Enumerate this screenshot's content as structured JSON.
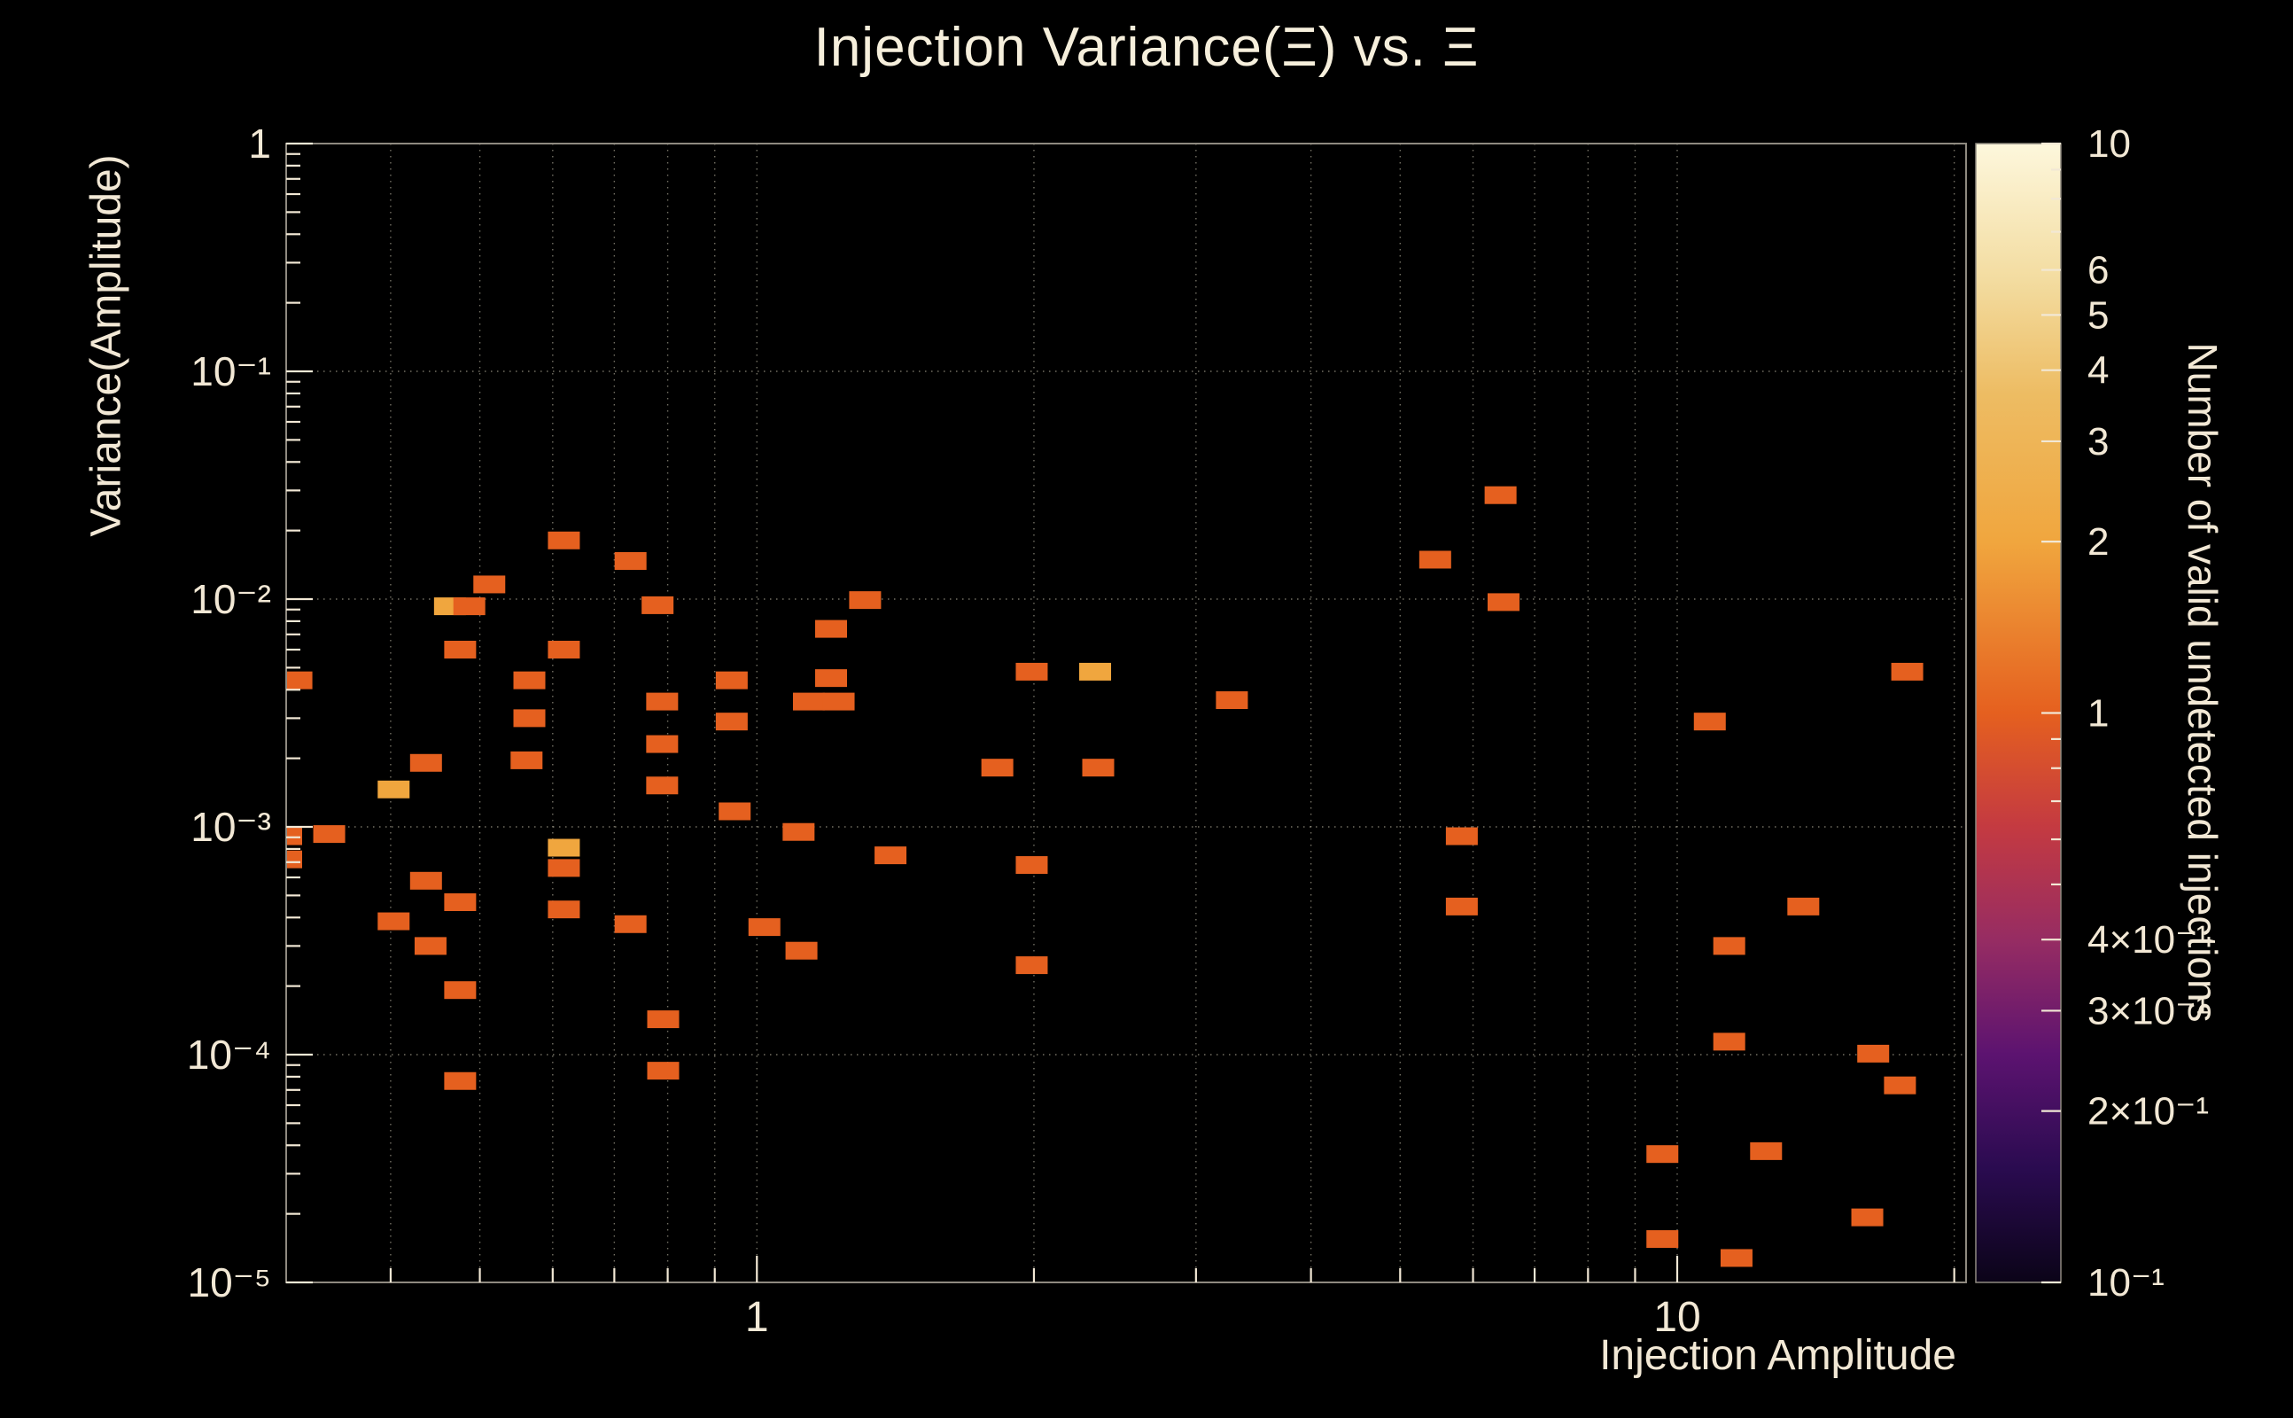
{
  "chart_data": {
    "type": "heatmap",
    "title": "Injection Variance(Ξ) vs. Ξ",
    "xlabel": "Injection Amplitude",
    "ylabel": "Variance(Amplitude)",
    "zlabel": "Number of valid undetected injections",
    "x_scale": "log",
    "y_scale": "log",
    "z_scale": "log",
    "x_range": [
      0.308,
      20.6
    ],
    "y_range": [
      1e-05,
      1
    ],
    "z_range": [
      0.1,
      10
    ],
    "grid": true,
    "background": "#000000",
    "frame_color": "#8f8a80",
    "grid_color": "rgba(253,247,220,0.45)",
    "tick_color": "#f2e8d5",
    "x_ticks": [
      {
        "v": 1,
        "label": "1"
      },
      {
        "v": 10,
        "label": "10"
      }
    ],
    "y_ticks": [
      {
        "v": 1,
        "label": "1"
      },
      {
        "v": 0.1,
        "label": "10⁻¹"
      },
      {
        "v": 0.01,
        "label": "10⁻²"
      },
      {
        "v": 0.001,
        "label": "10⁻³"
      },
      {
        "v": 0.0001,
        "label": "10⁻⁴"
      },
      {
        "v": 1e-05,
        "label": "10⁻⁵"
      }
    ],
    "z_ticks": [
      {
        "v": 10,
        "label": "10"
      },
      {
        "v": 6,
        "label": "6"
      },
      {
        "v": 5,
        "label": "5"
      },
      {
        "v": 4,
        "label": "4"
      },
      {
        "v": 3,
        "label": "3"
      },
      {
        "v": 2,
        "label": "2"
      },
      {
        "v": 1,
        "label": "1"
      },
      {
        "v": 0.4,
        "label": "4×10⁻¹"
      },
      {
        "v": 0.3,
        "label": "3×10⁻¹"
      },
      {
        "v": 0.2,
        "label": "2×10⁻¹"
      },
      {
        "v": 0.1,
        "label": "10⁻¹"
      }
    ],
    "z_minor_ticks": [
      0.5,
      0.6,
      0.7,
      0.8,
      0.9,
      7,
      8,
      9
    ],
    "palette": [
      {
        "pos": 0.0,
        "color": "#0b0418"
      },
      {
        "pos": 0.1,
        "color": "#2a0b50"
      },
      {
        "pos": 0.2,
        "color": "#5c1370"
      },
      {
        "pos": 0.3,
        "color": "#962c63"
      },
      {
        "pos": 0.4,
        "color": "#c43a41"
      },
      {
        "pos": 0.5,
        "color": "#e5601f"
      },
      {
        "pos": 0.65,
        "color": "#f0a63e"
      },
      {
        "pos": 0.78,
        "color": "#edbc63"
      },
      {
        "pos": 0.88,
        "color": "#f3dca0"
      },
      {
        "pos": 1.0,
        "color": "#fdf7dc"
      }
    ],
    "value_colors": {
      "1": "#e5601f",
      "2": "#f0a63e"
    },
    "points": [
      {
        "x": 0.316,
        "y": 0.0044,
        "n": 1
      },
      {
        "x": 0.308,
        "y": 0.00091,
        "n": 1
      },
      {
        "x": 0.308,
        "y": 0.00072,
        "n": 1
      },
      {
        "x": 0.343,
        "y": 0.00093,
        "n": 1
      },
      {
        "x": 0.403,
        "y": 0.00146,
        "n": 2
      },
      {
        "x": 0.437,
        "y": 0.00191,
        "n": 1
      },
      {
        "x": 0.437,
        "y": 0.00058,
        "n": 1
      },
      {
        "x": 0.403,
        "y": 0.000385,
        "n": 1
      },
      {
        "x": 0.442,
        "y": 0.0003,
        "n": 1
      },
      {
        "x": 0.476,
        "y": 0.000467,
        "n": 1
      },
      {
        "x": 0.476,
        "y": 0.000192,
        "n": 1
      },
      {
        "x": 0.476,
        "y": 7.66e-05,
        "n": 1
      },
      {
        "x": 0.464,
        "y": 0.0093,
        "n": 2
      },
      {
        "x": 0.487,
        "y": 0.0093,
        "n": 1
      },
      {
        "x": 0.512,
        "y": 0.0116,
        "n": 1
      },
      {
        "x": 0.476,
        "y": 0.006,
        "n": 1
      },
      {
        "x": 0.566,
        "y": 0.0044,
        "n": 1
      },
      {
        "x": 0.566,
        "y": 0.003,
        "n": 1
      },
      {
        "x": 0.562,
        "y": 0.00196,
        "n": 1
      },
      {
        "x": 0.617,
        "y": 0.0181,
        "n": 1
      },
      {
        "x": 0.617,
        "y": 0.006,
        "n": 1
      },
      {
        "x": 0.617,
        "y": 0.00081,
        "n": 2
      },
      {
        "x": 0.617,
        "y": 0.00066,
        "n": 1
      },
      {
        "x": 0.617,
        "y": 0.000434,
        "n": 1
      },
      {
        "x": 0.729,
        "y": 0.0147,
        "n": 1
      },
      {
        "x": 0.729,
        "y": 0.000374,
        "n": 1
      },
      {
        "x": 0.78,
        "y": 0.0094,
        "n": 1
      },
      {
        "x": 0.789,
        "y": 0.00355,
        "n": 1
      },
      {
        "x": 0.789,
        "y": 0.00231,
        "n": 1
      },
      {
        "x": 0.789,
        "y": 0.00152,
        "n": 1
      },
      {
        "x": 0.791,
        "y": 0.000143,
        "n": 1
      },
      {
        "x": 0.791,
        "y": 8.5e-05,
        "n": 1
      },
      {
        "x": 0.939,
        "y": 0.0044,
        "n": 1
      },
      {
        "x": 0.939,
        "y": 0.0029,
        "n": 1
      },
      {
        "x": 0.946,
        "y": 0.00117,
        "n": 1
      },
      {
        "x": 1.019,
        "y": 0.000363,
        "n": 1
      },
      {
        "x": 1.118,
        "y": 0.000286,
        "n": 1
      },
      {
        "x": 1.11,
        "y": 0.00095,
        "n": 1
      },
      {
        "x": 1.139,
        "y": 0.00355,
        "n": 1
      },
      {
        "x": 1.227,
        "y": 0.00355,
        "n": 1
      },
      {
        "x": 1.204,
        "y": 0.0045,
        "n": 1
      },
      {
        "x": 1.204,
        "y": 0.0074,
        "n": 1
      },
      {
        "x": 1.311,
        "y": 0.0099,
        "n": 1
      },
      {
        "x": 1.397,
        "y": 0.00075,
        "n": 1
      },
      {
        "x": 1.825,
        "y": 0.00182,
        "n": 1
      },
      {
        "x": 1.989,
        "y": 0.0048,
        "n": 1
      },
      {
        "x": 1.989,
        "y": 0.00068,
        "n": 1
      },
      {
        "x": 1.989,
        "y": 0.000247,
        "n": 1
      },
      {
        "x": 2.331,
        "y": 0.0048,
        "n": 2
      },
      {
        "x": 2.349,
        "y": 0.00182,
        "n": 1
      },
      {
        "x": 3.282,
        "y": 0.0036,
        "n": 1
      },
      {
        "x": 5.458,
        "y": 0.0149,
        "n": 1
      },
      {
        "x": 5.834,
        "y": 0.00091,
        "n": 1
      },
      {
        "x": 5.834,
        "y": 0.000447,
        "n": 1
      },
      {
        "x": 6.428,
        "y": 0.0286,
        "n": 1
      },
      {
        "x": 6.476,
        "y": 0.0097,
        "n": 1
      },
      {
        "x": 9.636,
        "y": 3.66e-05,
        "n": 1
      },
      {
        "x": 9.636,
        "y": 1.55e-05,
        "n": 1
      },
      {
        "x": 10.85,
        "y": 0.0029,
        "n": 1
      },
      {
        "x": 11.39,
        "y": 0.0003,
        "n": 1
      },
      {
        "x": 11.39,
        "y": 0.000114,
        "n": 1
      },
      {
        "x": 11.6,
        "y": 1.28e-05,
        "n": 1
      },
      {
        "x": 12.49,
        "y": 3.77e-05,
        "n": 1
      },
      {
        "x": 13.71,
        "y": 0.000447,
        "n": 1
      },
      {
        "x": 16.09,
        "y": 1.93e-05,
        "n": 1
      },
      {
        "x": 16.33,
        "y": 0.000101,
        "n": 1
      },
      {
        "x": 17.46,
        "y": 7.33e-05,
        "n": 1
      },
      {
        "x": 17.78,
        "y": 0.0048,
        "n": 1
      }
    ]
  }
}
